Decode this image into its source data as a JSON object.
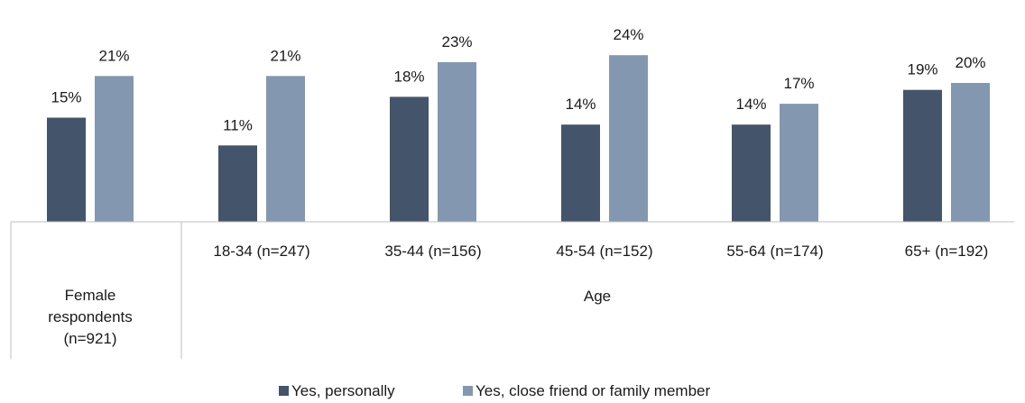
{
  "chart_data": {
    "type": "bar",
    "title": "",
    "xlabel": "",
    "ylabel": "",
    "ylim": [
      0,
      25
    ],
    "grid": false,
    "legend": "bottom-center",
    "categories": [
      "Female respondents (n=921)",
      "18-34 (n=247)",
      "35-44 (n=156)",
      "45-54 (n=152)",
      "55-64 (n=174)",
      "65+ (n=192)"
    ],
    "category_label_lines": [
      [
        "Female",
        "respondents",
        "(n=921)"
      ],
      [
        "18-34 (n=247)"
      ],
      [
        "35-44 (n=156)"
      ],
      [
        "45-54 (n=152)"
      ],
      [
        "55-64 (n=174)"
      ],
      [
        "65+ (n=192)"
      ]
    ],
    "group_label": "Age",
    "series": [
      {
        "name": "Yes, personally",
        "color": "#44546a",
        "values": [
          15,
          11,
          18,
          14,
          14,
          19
        ],
        "labels": [
          "15%",
          "11%",
          "18%",
          "14%",
          "14%",
          "19%"
        ]
      },
      {
        "name": "Yes, close friend or family member",
        "color": "#8497b0",
        "values": [
          21,
          21,
          23,
          24,
          17,
          20
        ],
        "labels": [
          "21%",
          "21%",
          "23%",
          "24%",
          "17%",
          "20%"
        ]
      }
    ]
  }
}
